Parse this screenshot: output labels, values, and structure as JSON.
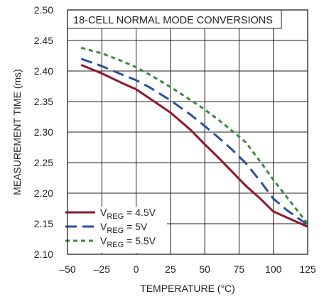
{
  "chart_data": {
    "type": "line",
    "title": "18-CELL NORMAL MODE CONVERSIONS",
    "xlabel": "TEMPERATURE (°C)",
    "ylabel": "MEASUREMENT TIME (ms)",
    "xlim": [
      -50,
      125
    ],
    "ylim": [
      2.1,
      2.5
    ],
    "xticks": [
      "–50",
      "–25",
      "0",
      "25",
      "50",
      "75",
      "100",
      "125"
    ],
    "xtick_values": [
      -50,
      -25,
      0,
      25,
      50,
      75,
      100,
      125
    ],
    "yticks": [
      "2.10",
      "2.15",
      "2.20",
      "2.25",
      "2.30",
      "2.35",
      "2.40",
      "2.45",
      "2.50"
    ],
    "ytick_values": [
      2.1,
      2.15,
      2.2,
      2.25,
      2.3,
      2.35,
      2.4,
      2.45,
      2.5
    ],
    "grid": true,
    "legend_position": "bottom-left",
    "series": [
      {
        "name": "VREG = 4.5V",
        "legend_main": "V",
        "legend_sub": "REG",
        "legend_tail": " = 4.5V",
        "color": "#8b1a2b",
        "dash": "solid",
        "x": [
          -40,
          -25,
          -10,
          0,
          10,
          25,
          40,
          50,
          60,
          70,
          80,
          90,
          100,
          110,
          125
        ],
        "y": [
          2.41,
          2.396,
          2.38,
          2.37,
          2.355,
          2.332,
          2.303,
          2.28,
          2.258,
          2.235,
          2.212,
          2.192,
          2.17,
          2.16,
          2.145
        ]
      },
      {
        "name": "VREG = 5V",
        "legend_main": "V",
        "legend_sub": "REG",
        "legend_tail": " = 5V",
        "color": "#2e4f9e",
        "dash": "long",
        "x": [
          -40,
          -25,
          -10,
          0,
          10,
          25,
          40,
          50,
          60,
          70,
          80,
          90,
          100,
          110,
          125
        ],
        "y": [
          2.42,
          2.408,
          2.394,
          2.385,
          2.373,
          2.352,
          2.328,
          2.31,
          2.291,
          2.271,
          2.249,
          2.221,
          2.191,
          2.172,
          2.148
        ]
      },
      {
        "name": "VREG = 5.5V",
        "legend_main": "V",
        "legend_sub": "REG",
        "legend_tail": " = 5.5V",
        "color": "#3a8a3a",
        "dash": "short",
        "x": [
          -40,
          -25,
          -10,
          0,
          10,
          25,
          40,
          50,
          60,
          70,
          80,
          90,
          100,
          110,
          125
        ],
        "y": [
          2.438,
          2.429,
          2.416,
          2.406,
          2.394,
          2.374,
          2.352,
          2.337,
          2.32,
          2.302,
          2.283,
          2.253,
          2.222,
          2.193,
          2.15
        ]
      }
    ]
  }
}
